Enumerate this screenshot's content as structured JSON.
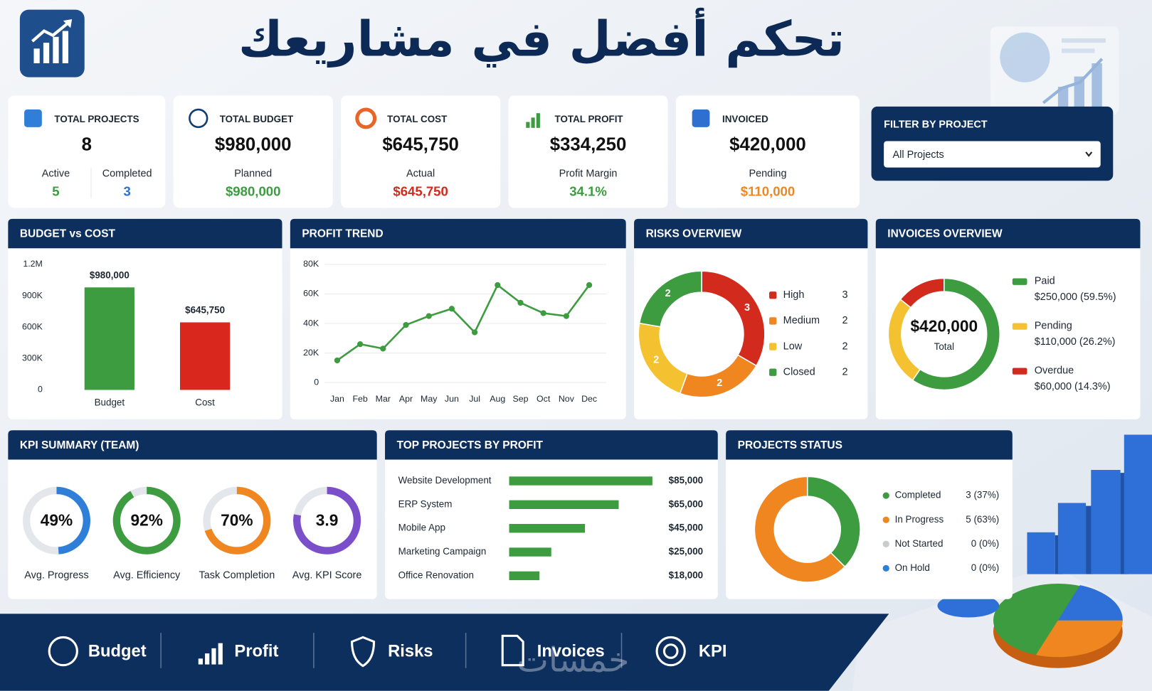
{
  "header": {
    "title": "تحكم أفضل في مشاريعك"
  },
  "cards": [
    {
      "title": "TOTAL PROJECTS",
      "value": 8,
      "stats": [
        {
          "label": "Active",
          "value": 5,
          "color": "#3d9b40"
        },
        {
          "label": "Completed",
          "value": 3,
          "color": "#2f6fd0"
        }
      ]
    },
    {
      "title": "TOTAL BUDGET",
      "value": "$980,000",
      "stats": [
        {
          "label": "Planned",
          "value": "$980,000",
          "color": "#3d9b40"
        }
      ]
    },
    {
      "title": "TOTAL COST",
      "value": "$645,750",
      "stats": [
        {
          "label": "Actual",
          "value": "$645,750",
          "color": "#d32a1e"
        }
      ]
    },
    {
      "title": "TOTAL PROFIT",
      "value": "$334,250",
      "stats": [
        {
          "label": "Profit Margin",
          "value": "34.1%",
          "color": "#3d9b40"
        }
      ]
    },
    {
      "title": "INVOICED",
      "value": "$420,000",
      "stats": [
        {
          "label": "Pending",
          "value": "$110,000",
          "color": "#f0861f"
        }
      ]
    }
  ],
  "filter": {
    "title": "FILTER BY PROJECT",
    "selected": "All Projects"
  },
  "budget_vs_cost": {
    "type": "bar",
    "title": "BUDGET vs COST",
    "categories": [
      "Budget",
      "Cost"
    ],
    "values": [
      980000,
      645750
    ],
    "value_labels": [
      "$980,000",
      "$645,750"
    ],
    "colors": [
      "#3d9b40",
      "#d9271d"
    ],
    "ylim": [
      0,
      1200000
    ],
    "yticks": [
      0,
      {
        "value": 300000,
        "label": "300K"
      },
      {
        "value": 600000,
        "label": "600K"
      },
      {
        "value": 900000,
        "label": "900K"
      },
      {
        "value": 1200000,
        "label": "1.2M"
      }
    ],
    "grid": false
  },
  "profit_trend": {
    "type": "line",
    "title": "PROFIT TREND",
    "categories": [
      "Jan",
      "Feb",
      "Mar",
      "Apr",
      "May",
      "Jun",
      "Jul",
      "Aug",
      "Sep",
      "Oct",
      "Nov",
      "Dec"
    ],
    "values": [
      15000,
      26000,
      23000,
      39000,
      45000,
      50000,
      34000,
      66000,
      54000,
      47000,
      45000,
      66000
    ],
    "color": "#3d9b40",
    "ylim": [
      0,
      80000
    ],
    "yticks": [
      0,
      {
        "value": 20000,
        "label": "20K"
      },
      {
        "value": 40000,
        "label": "40K"
      },
      {
        "value": 60000,
        "label": "60K"
      },
      {
        "value": 80000,
        "label": "80K"
      }
    ],
    "grid": true
  },
  "risks_overview": {
    "type": "donut",
    "title": "RISKS OVERVIEW",
    "categories": [
      "High",
      "Medium",
      "Low",
      "Closed"
    ],
    "values": [
      3,
      2,
      2,
      2
    ],
    "colors": [
      "#d32a1e",
      "#f0861f",
      "#f4c231",
      "#3d9b40"
    ]
  },
  "invoices_overview": {
    "type": "donut",
    "title": "INVOICES OVERVIEW",
    "center_label": "$420,000",
    "center_caption": "Total",
    "categories": [
      "Paid",
      "Pending",
      "Overdue"
    ],
    "values": [
      250000,
      110000,
      60000
    ],
    "value_labels": [
      "$250,000 (59.5%)",
      "$110,000 (26.2%)",
      "$60,000 (14.3%)"
    ],
    "colors": [
      "#3d9b40",
      "#f4c231",
      "#d32a1e"
    ]
  },
  "kpi_summary": {
    "type": "gauge",
    "title": "KPI SUMMARY (TEAM)",
    "categories": [
      "Avg. Progress",
      "Avg. Efficiency",
      "Task Completion",
      "Avg. KPI Score"
    ],
    "values": [
      49,
      92,
      70,
      3.9
    ],
    "maxes": [
      100,
      100,
      100,
      5
    ],
    "value_labels": [
      "49%",
      "92%",
      "70%",
      "3.9"
    ],
    "colors": [
      "#2f7fd8",
      "#3d9b40",
      "#f0861f",
      "#7b4fc9"
    ]
  },
  "top_projects": {
    "type": "hbar",
    "title": "TOP PROJECTS BY PROFIT",
    "categories": [
      "Website Development",
      "ERP System",
      "Mobile App",
      "Marketing Campaign",
      "Office Renovation"
    ],
    "values": [
      85000,
      65000,
      45000,
      25000,
      18000
    ],
    "value_labels": [
      "$85,000",
      "$65,000",
      "$45,000",
      "$25,000",
      "$18,000"
    ],
    "color": "#3d9b40"
  },
  "projects_status": {
    "type": "donut",
    "title": "PROJECTS STATUS",
    "categories": [
      "Completed",
      "In Progress",
      "Not Started",
      "On Hold"
    ],
    "values": [
      3,
      5,
      0,
      0
    ],
    "value_labels": [
      "3 (37%)",
      "5 (63%)",
      "0 (0%)",
      "0 (0%)"
    ],
    "colors": [
      "#3d9b40",
      "#f0861f",
      "#c8ccd1",
      "#2f7fd8"
    ]
  },
  "nav": {
    "items": [
      "Budget",
      "Profit",
      "Risks",
      "Invoices",
      "KPI"
    ]
  },
  "watermark": "خمسات"
}
